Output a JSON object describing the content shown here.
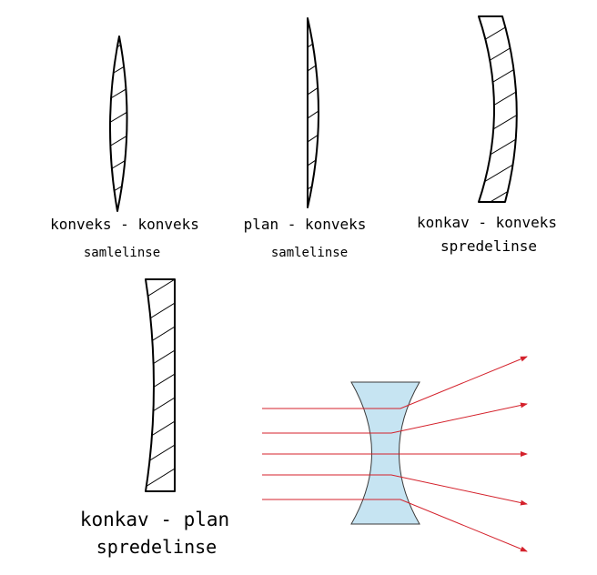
{
  "colors": {
    "outline": "#000000",
    "ray": "#d4212b",
    "lens_fill": "#c6e4f2",
    "lens_stroke": "#3a3a3a"
  },
  "lenses": [
    {
      "type": "konveks - konveks",
      "kind": "samlelinse"
    },
    {
      "type": "plan - konveks",
      "kind": "samlelinse"
    },
    {
      "type": "konkav - konveks",
      "kind": "spredelinse"
    },
    {
      "type": "konkav - plan",
      "kind": "spredelinse"
    }
  ]
}
